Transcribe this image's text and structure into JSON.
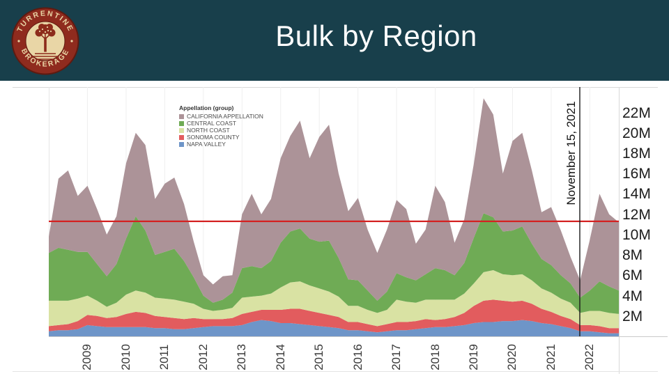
{
  "header": {
    "title": "Bulk by Region",
    "bg_color": "#183f4b",
    "logo": {
      "top_text": "TURRENTINE",
      "bottom_text": "BROKERAGE",
      "ring_color": "#8f2b1e",
      "ring_edge_color": "#5f1a10",
      "disc_color": "#e9d6a6",
      "tree_color": "#8d2c1c"
    }
  },
  "chart_data": {
    "type": "area",
    "stacked": true,
    "title": "",
    "legend_title": "Appellation (group)",
    "legend_position": "top-left-inside",
    "grid": "faint-vertical-year-lines",
    "legend": [
      {
        "label": "CALIFORNIA APPELLATION",
        "color": "#ac9398"
      },
      {
        "label": "CENTRAL COAST",
        "color": "#6fab55"
      },
      {
        "label": "NORTH COAST",
        "color": "#d9e2a3"
      },
      {
        "label": "SONOMA COUNTY",
        "color": "#e25c5e"
      },
      {
        "label": "NAPA VALLEY",
        "color": "#6e95c8"
      }
    ],
    "x_start": 2008.0,
    "x_step": 0.25,
    "xlim": [
      2008.0,
      2022.75
    ],
    "ylim": [
      0,
      24.5
    ],
    "x_ticks": [
      "2009",
      "2010",
      "2011",
      "2012",
      "2013",
      "2014",
      "2015",
      "2016",
      "2017",
      "2018",
      "2019",
      "2020",
      "2021",
      "2022"
    ],
    "x_tick_values": [
      2009,
      2010,
      2011,
      2012,
      2013,
      2014,
      2015,
      2016,
      2017,
      2018,
      2019,
      2020,
      2021,
      2022
    ],
    "y_ticks": [
      "2M",
      "4M",
      "6M",
      "8M",
      "10M",
      "12M",
      "14M",
      "16M",
      "18M",
      "20M",
      "22M"
    ],
    "y_tick_values": [
      2,
      4,
      6,
      8,
      10,
      12,
      14,
      16,
      18,
      20,
      22
    ],
    "series": [
      {
        "name": "NAPA VALLEY",
        "color": "#6e95c8",
        "values": [
          0.5,
          0.6,
          0.6,
          0.7,
          1.1,
          1.0,
          0.9,
          0.9,
          0.9,
          0.9,
          0.9,
          0.8,
          0.8,
          0.7,
          0.7,
          0.8,
          0.9,
          1.0,
          1.0,
          1.0,
          1.1,
          1.4,
          1.6,
          1.5,
          1.3,
          1.3,
          1.2,
          1.1,
          1.0,
          0.9,
          0.8,
          0.6,
          0.6,
          0.5,
          0.4,
          0.5,
          0.6,
          0.6,
          0.7,
          0.8,
          0.9,
          0.9,
          1.0,
          1.1,
          1.3,
          1.4,
          1.4,
          1.5,
          1.5,
          1.6,
          1.5,
          1.3,
          1.2,
          1.0,
          0.8,
          0.5,
          0.5,
          0.4,
          0.3,
          0.3
        ]
      },
      {
        "name": "SONOMA COUNTY",
        "color": "#e25c5e",
        "values": [
          0.5,
          0.5,
          0.6,
          0.8,
          1.0,
          1.0,
          0.9,
          1.0,
          1.3,
          1.5,
          1.4,
          1.2,
          1.1,
          1.1,
          1.0,
          1.0,
          0.8,
          0.7,
          0.7,
          0.8,
          1.1,
          1.0,
          1.0,
          1.1,
          1.3,
          1.4,
          1.5,
          1.4,
          1.3,
          1.2,
          1.1,
          0.8,
          0.8,
          0.7,
          0.6,
          0.7,
          0.8,
          0.8,
          0.8,
          0.9,
          0.7,
          0.8,
          0.9,
          1.2,
          1.7,
          2.1,
          2.2,
          2.0,
          1.9,
          1.9,
          1.7,
          1.4,
          1.2,
          1.0,
          0.9,
          0.6,
          0.6,
          0.6,
          0.5,
          0.5
        ]
      },
      {
        "name": "NORTH COAST",
        "color": "#d9e2a3",
        "values": [
          2.5,
          2.4,
          2.3,
          2.2,
          1.9,
          1.5,
          1.1,
          1.4,
          1.9,
          2.1,
          2.0,
          1.8,
          1.8,
          1.8,
          1.7,
          1.4,
          1.0,
          0.8,
          0.9,
          1.0,
          1.6,
          1.5,
          1.4,
          1.6,
          2.2,
          2.6,
          2.7,
          2.5,
          2.4,
          2.3,
          2.0,
          1.6,
          1.6,
          1.4,
          1.3,
          1.4,
          2.2,
          2.0,
          1.8,
          1.9,
          2.0,
          1.9,
          1.7,
          1.9,
          2.2,
          2.8,
          2.9,
          2.6,
          2.6,
          2.6,
          2.3,
          2.0,
          1.9,
          1.7,
          1.6,
          1.2,
          1.4,
          1.5,
          1.5,
          1.4
        ]
      },
      {
        "name": "CENTRAL COAST",
        "color": "#6fab55",
        "values": [
          4.7,
          5.2,
          5.0,
          4.6,
          4.3,
          3.6,
          3.0,
          3.8,
          5.5,
          7.3,
          6.1,
          4.2,
          4.6,
          5.0,
          4.0,
          2.6,
          1.3,
          0.8,
          1.0,
          1.5,
          2.9,
          3.0,
          2.7,
          3.2,
          4.4,
          5.0,
          5.2,
          4.6,
          4.6,
          5.0,
          3.8,
          2.6,
          2.5,
          1.9,
          1.2,
          1.8,
          2.6,
          2.4,
          2.2,
          2.5,
          3.1,
          2.9,
          2.4,
          3.0,
          4.5,
          5.8,
          5.2,
          4.2,
          4.4,
          4.7,
          3.6,
          2.9,
          2.7,
          2.3,
          1.9,
          1.5,
          2.0,
          2.9,
          2.6,
          2.3
        ]
      },
      {
        "name": "CALIFORNIA APPELLATION",
        "color": "#ac9398",
        "values": [
          1.6,
          6.8,
          7.8,
          5.5,
          6.5,
          5.4,
          4.1,
          4.7,
          7.4,
          8.2,
          8.4,
          5.5,
          6.7,
          7.0,
          5.6,
          3.5,
          2.0,
          1.8,
          2.3,
          1.7,
          5.3,
          7.1,
          5.3,
          6.1,
          8.3,
          9.4,
          10.6,
          7.9,
          10.3,
          11.4,
          8.3,
          6.7,
          8.1,
          6.0,
          4.7,
          6.1,
          7.2,
          6.7,
          3.6,
          4.4,
          8.1,
          6.7,
          3.2,
          4.3,
          7.3,
          11.3,
          10.1,
          5.7,
          8.8,
          9.2,
          7.2,
          4.6,
          5.7,
          4.4,
          2.6,
          1.7,
          5.0,
          8.6,
          7.1,
          6.7
        ]
      }
    ],
    "reference_line": {
      "value": 11.3,
      "color": "#d42222"
    },
    "date_line": {
      "label": "November 15, 2021",
      "x": 2021.74,
      "color": "#1a1a1a"
    }
  }
}
